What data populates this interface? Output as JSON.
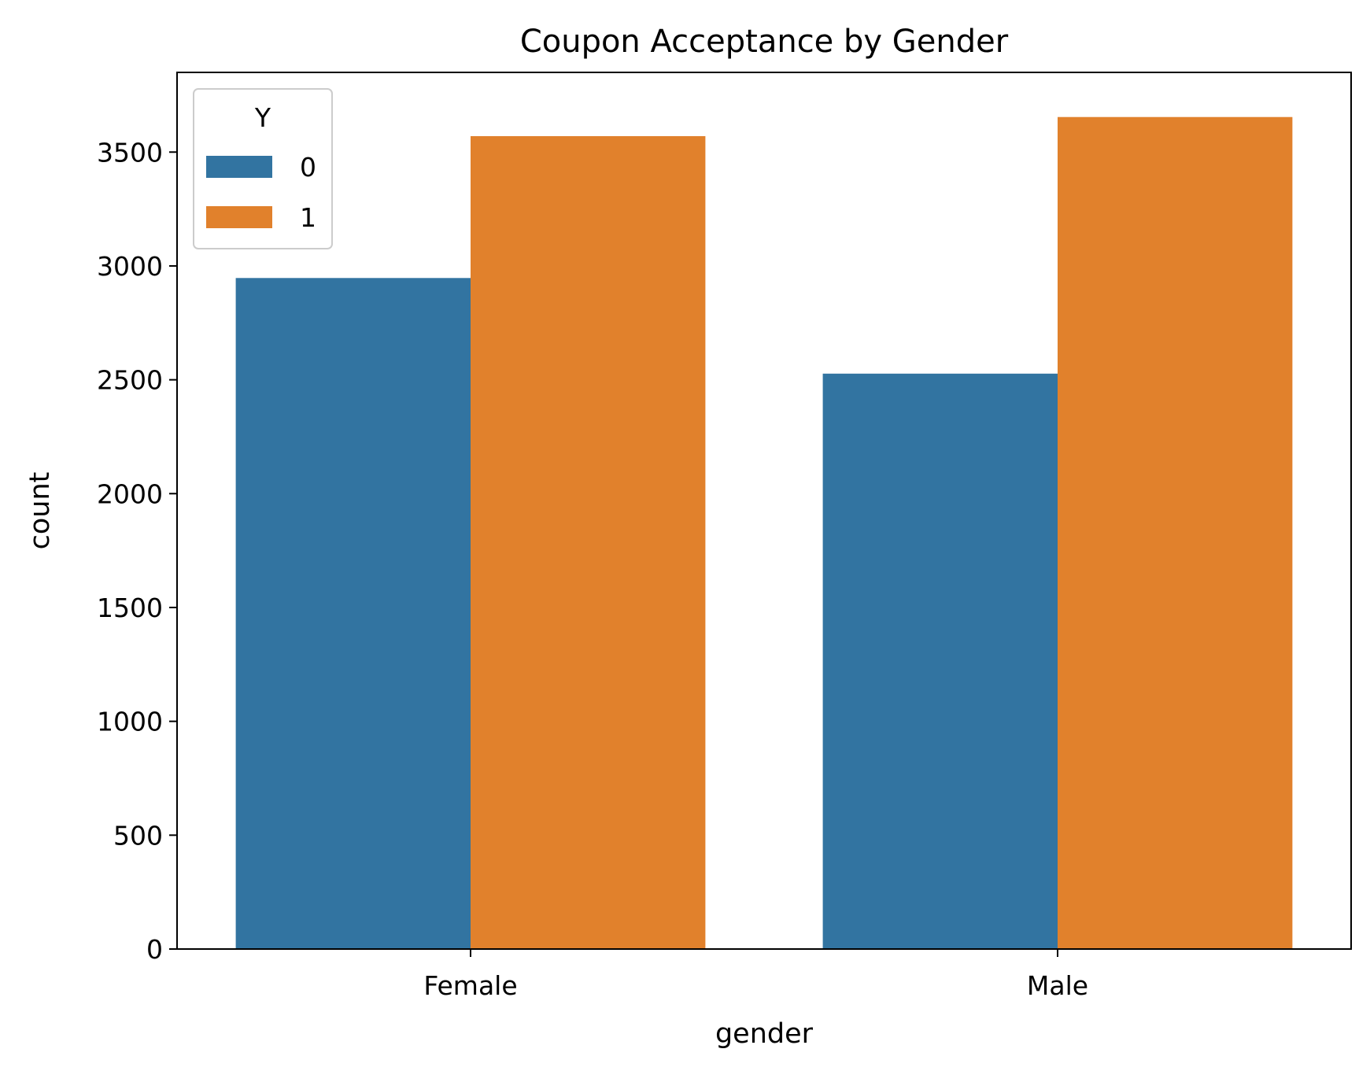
{
  "chart_data": {
    "type": "bar",
    "title": "Coupon Acceptance by Gender",
    "xlabel": "gender",
    "ylabel": "count",
    "categories": [
      "Female",
      "Male"
    ],
    "series": [
      {
        "name": "0",
        "values": [
          2947,
          2527
        ],
        "color": "#3274a1"
      },
      {
        "name": "1",
        "values": [
          3570,
          3654
        ],
        "color": "#e1812c"
      }
    ],
    "ylim": [
      0,
      3850
    ],
    "yticks": [
      0,
      500,
      1000,
      1500,
      2000,
      2500,
      3000,
      3500
    ],
    "legend": {
      "title": "Y",
      "placement": "top-left"
    },
    "grid": false
  }
}
